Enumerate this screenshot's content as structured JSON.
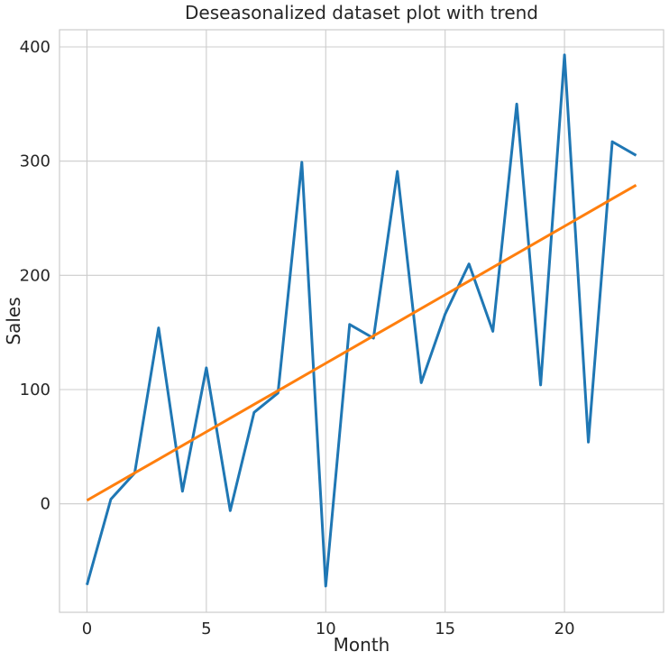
{
  "chart_data": {
    "type": "line",
    "title": "Deseasonalized dataset plot with trend",
    "xlabel": "Month",
    "ylabel": "Sales",
    "xlim": [
      -1.15,
      24.15
    ],
    "ylim": [
      -95,
      415
    ],
    "x_ticks": [
      0,
      5,
      10,
      15,
      20
    ],
    "y_ticks": [
      0,
      100,
      200,
      300,
      400
    ],
    "grid": true,
    "x": [
      0,
      1,
      2,
      3,
      4,
      5,
      6,
      7,
      8,
      9,
      10,
      11,
      12,
      13,
      14,
      15,
      16,
      17,
      18,
      19,
      20,
      21,
      22,
      23
    ],
    "series": [
      {
        "color": "#1f77b4",
        "values": [
          -71,
          4,
          27,
          154,
          11,
          119,
          -6,
          80,
          97,
          299,
          -72,
          157,
          145,
          291,
          106,
          166,
          210,
          151,
          350,
          104,
          393,
          54,
          317,
          305
        ]
      },
      {
        "color": "#ff7f0e",
        "values": [
          3,
          15,
          27,
          39,
          51,
          63,
          75,
          87,
          99,
          111,
          123,
          135,
          147,
          159,
          171,
          183,
          195,
          207,
          219,
          231,
          243,
          255,
          267,
          279
        ]
      }
    ]
  }
}
